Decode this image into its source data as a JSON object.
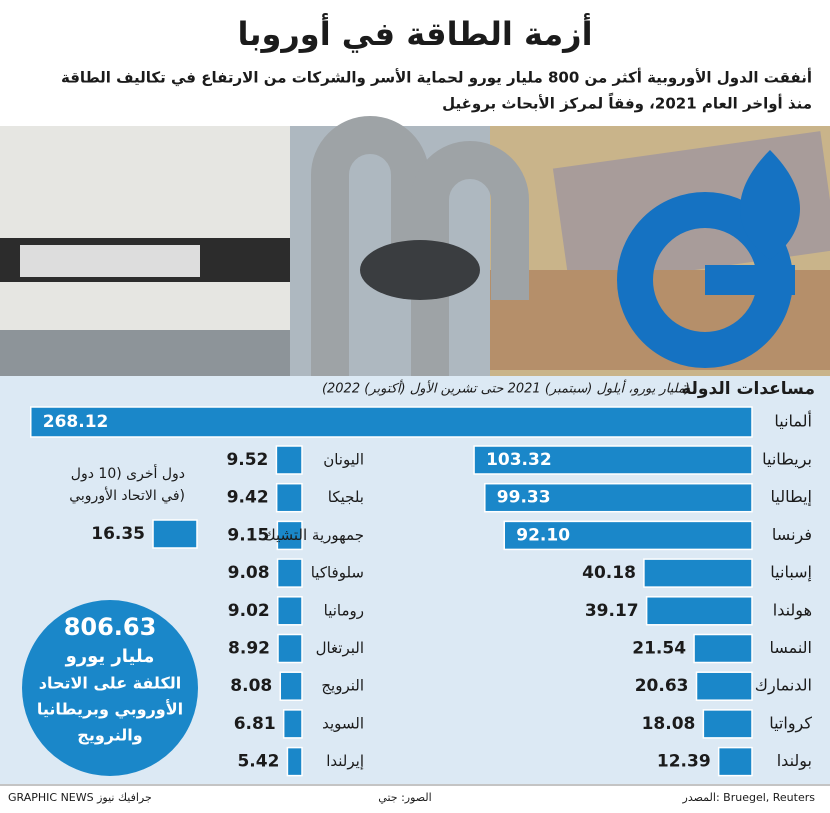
{
  "chart_data": {
    "type": "bar",
    "title": "أزمة الطاقة في أوروبا",
    "subtitle": [
      "أنفقت الدول الأوروبية أكثر من 800 مليار يورو لحماية الأسر والشركات من الارتفاع في تكاليف الطاقة",
      "منذ أواخر العام 2021، وفقاً لمركز الأبحاث بروغيل"
    ],
    "axis_title": "مساعدات الدولة",
    "unit": "(مليار يورو، أيلول (سبتمبر) 2021 حتى تشرين الأول (أكتوبر) 2022)",
    "color": "#1a87c9",
    "groups": [
      {
        "categories": [
          "ألمانيا",
          "بريطانيا",
          "إيطاليا",
          "فرنسا",
          "إسبانيا",
          "هولندا",
          "النمسا",
          "الدنمارك",
          "كرواتيا",
          "بولندا"
        ],
        "values": [
          268.12,
          103.32,
          99.33,
          92.1,
          40.18,
          39.17,
          21.54,
          20.63,
          18.08,
          12.39
        ],
        "value_labels": [
          "268.12",
          "103.32",
          "99.33",
          "92.10",
          "40.18",
          "39.17",
          "21.54",
          "20.63",
          "18.08",
          "12.39"
        ]
      },
      {
        "categories": [
          "اليونان",
          "بلجيكا",
          "جمهورية التشيك",
          "سلوفاكيا",
          "رومانيا",
          "البرتغال",
          "النرويج",
          "السويد",
          "إيرلندا"
        ],
        "values": [
          9.52,
          9.42,
          9.15,
          9.08,
          9.02,
          8.92,
          8.08,
          6.81,
          5.42
        ]
      }
    ],
    "other": {
      "label": [
        "دول أخرى (10 دول",
        "في الاتحاد الأوروبي)"
      ],
      "value": 16.35
    },
    "total": {
      "value": 806.63,
      "lines": [
        "مليار يورو",
        "الكلفة على الاتحاد",
        "الأوروبي وبريطانيا",
        "والنرويج"
      ]
    },
    "source": "المصدر: Bruegel, Reuters",
    "photo_credit": "الصور: جتي",
    "credit": "GRAPHIC NEWS جرافيك نيوز"
  }
}
